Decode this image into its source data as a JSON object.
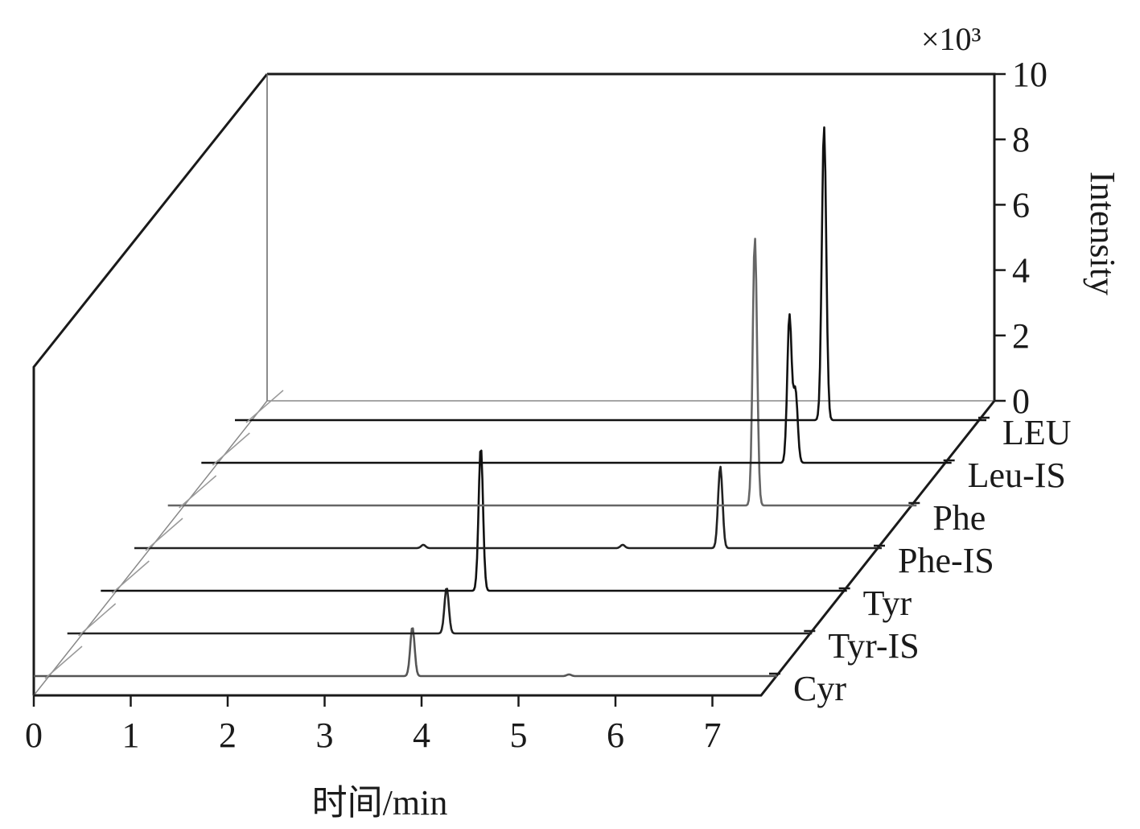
{
  "chart_data": {
    "type": "line",
    "style": "3d-waterfall",
    "x_axis": {
      "label": "时间/min",
      "range": [
        0,
        7.5
      ],
      "ticks": [
        0,
        1,
        2,
        3,
        4,
        5,
        6,
        7
      ]
    },
    "z_axis": {
      "label": "Intensity",
      "multiplier": "×10³",
      "range": [
        0,
        10
      ],
      "ticks": [
        0,
        2,
        4,
        6,
        8,
        10
      ]
    },
    "grid": false,
    "series": [
      {
        "name": "Cyr",
        "color": "#555555",
        "peaks": [
          {
            "x": 3.82,
            "y": 1.5
          },
          {
            "x": 5.4,
            "y": 0.05
          }
        ]
      },
      {
        "name": "Tyr-IS",
        "color": "#222222",
        "peaks": [
          {
            "x": 3.82,
            "y": 1.4
          }
        ]
      },
      {
        "name": "Tyr",
        "color": "#111111",
        "peaks": [
          {
            "x": 3.82,
            "y": 4.4
          }
        ]
      },
      {
        "name": "Phe-IS",
        "color": "#222222",
        "peaks": [
          {
            "x": 2.9,
            "y": 0.1
          },
          {
            "x": 4.9,
            "y": 0.1
          },
          {
            "x": 5.88,
            "y": 2.5
          }
        ]
      },
      {
        "name": "Phe",
        "color": "#666666",
        "peaks": [
          {
            "x": 5.88,
            "y": 8.2
          }
        ]
      },
      {
        "name": "Leu-IS",
        "color": "#111111",
        "peaks": [
          {
            "x": 5.88,
            "y": 4.5
          },
          {
            "x": 5.94,
            "y": 2.2
          }
        ]
      },
      {
        "name": "LEU",
        "color": "#111111",
        "peaks": [
          {
            "x": 5.88,
            "y": 9.0
          }
        ]
      }
    ]
  }
}
